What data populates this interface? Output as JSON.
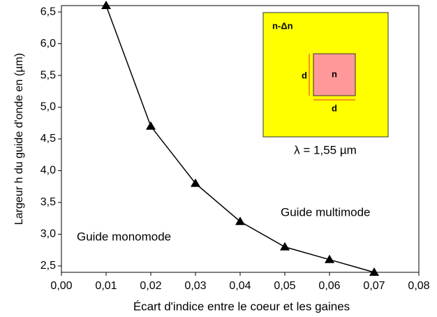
{
  "chart_data": {
    "type": "line",
    "x_label": "Écart d'indice entre le coeur et les gaines",
    "y_label": "Largeur h du guide d'onde en (µm)",
    "x": [
      0.01,
      0.02,
      0.03,
      0.04,
      0.05,
      0.06,
      0.07
    ],
    "series": [
      {
        "values": [
          6.6,
          4.7,
          3.8,
          3.2,
          2.8,
          2.6,
          2.4
        ],
        "color": "#000000",
        "marker": "triangle"
      }
    ],
    "xlim": [
      0,
      0.08
    ],
    "xticks": [
      {
        "value": 0,
        "label": "0,00"
      },
      {
        "value": 0.01,
        "label": "0,01"
      },
      {
        "value": 0.02,
        "label": "0,02"
      },
      {
        "value": 0.03,
        "label": "0,03"
      },
      {
        "value": 0.04,
        "label": "0,04"
      },
      {
        "value": 0.05,
        "label": "0,05"
      },
      {
        "value": 0.06,
        "label": "0,06"
      },
      {
        "value": 0.07,
        "label": "0,07"
      },
      {
        "value": 0.08,
        "label": "0,08"
      }
    ],
    "ylim": [
      2.4,
      6.6
    ],
    "yticks": [
      {
        "value": 2.5,
        "label": "2,5"
      },
      {
        "value": 3,
        "label": "3,0"
      },
      {
        "value": 3.5,
        "label": "3,5"
      },
      {
        "value": 4,
        "label": "4,0"
      },
      {
        "value": 4.5,
        "label": "4,5"
      },
      {
        "value": 5,
        "label": "5,0"
      },
      {
        "value": 5.5,
        "label": "5,5"
      },
      {
        "value": 6,
        "label": "6,0"
      },
      {
        "value": 6.5,
        "label": "6,5"
      }
    ],
    "annotations": [
      "Guide multimode",
      "Guide monomode"
    ],
    "inset": {
      "outer": "n-Δn",
      "core": "n",
      "height": "d",
      "width": "d",
      "wavelength": "λ = 1,55 µm"
    }
  }
}
